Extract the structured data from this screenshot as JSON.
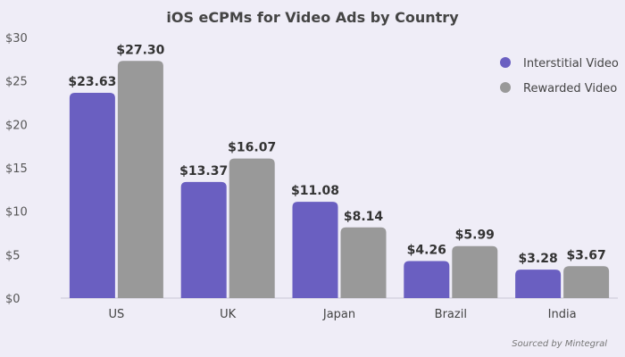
{
  "chart_data": {
    "type": "bar",
    "title": "iOS eCPMs for Video Ads by Country",
    "categories": [
      "US",
      "UK",
      "Japan",
      "Brazil",
      "India"
    ],
    "series": [
      {
        "name": "Interstitial Video",
        "color": "#6a5fc1",
        "values": [
          23.63,
          13.37,
          11.08,
          4.26,
          3.28
        ],
        "labels": [
          "$23.63",
          "$13.37",
          "$11.08",
          "$4.26",
          "$3.28"
        ]
      },
      {
        "name": "Rewarded Video",
        "color": "#999999",
        "values": [
          27.3,
          16.07,
          8.14,
          5.99,
          3.67
        ],
        "labels": [
          "$27.30",
          "$16.07",
          "$8.14",
          "$5.99",
          "$3.67"
        ]
      }
    ],
    "ylim": [
      0,
      30
    ],
    "yticks": [
      0,
      5,
      10,
      15,
      20,
      25,
      30
    ],
    "ytick_labels": [
      "$0",
      "$5",
      "$10",
      "$15",
      "$20",
      "$25",
      "$30"
    ],
    "xlabel": "",
    "ylabel": "",
    "grid": false,
    "legend_position": "top-right",
    "source": "Sourced by Mintegral"
  }
}
